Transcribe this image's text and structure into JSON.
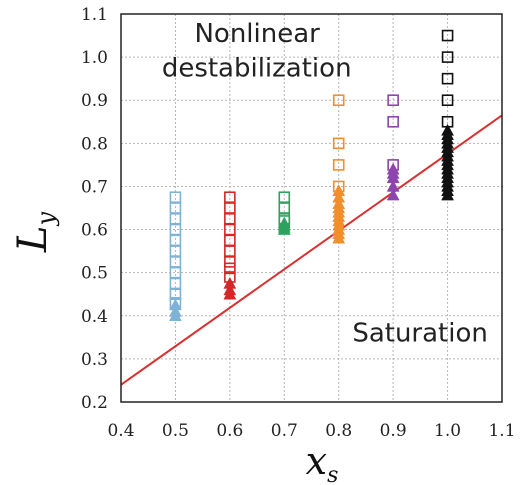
{
  "chart_data": {
    "type": "scatter",
    "xlabel": "x",
    "xlabel_sub": "s",
    "ylabel": "L",
    "ylabel_sub": "y",
    "xlim": [
      0.4,
      1.1
    ],
    "ylim": [
      0.2,
      1.1
    ],
    "x_ticks": [
      "0.4",
      "0.5",
      "0.6",
      "0.7",
      "0.8",
      "0.9",
      "1.0",
      "1.1"
    ],
    "y_ticks": [
      "0.2",
      "0.3",
      "0.4",
      "0.5",
      "0.6",
      "0.7",
      "0.8",
      "0.9",
      "1.0",
      "1.1"
    ],
    "grid": true,
    "annotations": [
      {
        "name": "nonlinear-label-line1",
        "text": "Nonlinear",
        "x": 0.535,
        "y": 1.035
      },
      {
        "name": "nonlinear-label-line2",
        "text": "destabilization",
        "x": 0.475,
        "y": 0.955
      },
      {
        "name": "saturation-label",
        "text": "Saturation",
        "x": 0.825,
        "y": 0.34
      }
    ],
    "fit_line": {
      "color": "#d93030",
      "x": [
        0.4,
        1.1
      ],
      "y": [
        0.24,
        0.865
      ]
    },
    "series": [
      {
        "x": 0.5,
        "color": "#7fb3d5",
        "open": [
          0.675,
          0.65,
          0.625,
          0.6,
          0.575,
          0.55,
          0.525,
          0.5,
          0.475,
          0.45,
          0.43
        ],
        "filled": [
          0.425,
          0.41,
          0.4
        ]
      },
      {
        "x": 0.6,
        "color": "#d62728",
        "open": [
          0.675,
          0.65,
          0.625,
          0.6,
          0.575,
          0.55,
          0.525,
          0.51,
          0.49
        ],
        "filled": [
          0.475,
          0.46,
          0.45
        ]
      },
      {
        "x": 0.7,
        "color": "#2ca25f",
        "open": [
          0.675,
          0.65,
          0.625,
          0.62
        ],
        "filled": [
          0.615,
          0.61,
          0.605,
          0.6
        ]
      },
      {
        "x": 0.8,
        "color": "#f28e2b",
        "open": [
          0.9,
          0.8,
          0.75,
          0.7
        ],
        "filled": [
          0.69,
          0.675,
          0.66,
          0.65,
          0.64,
          0.63,
          0.62,
          0.61,
          0.6,
          0.59,
          0.58
        ]
      },
      {
        "x": 0.9,
        "color": "#8e44ad",
        "open": [
          0.9,
          0.85,
          0.75
        ],
        "filled": [
          0.74,
          0.73,
          0.72,
          0.7,
          0.68
        ]
      },
      {
        "x": 1.0,
        "color": "#111111",
        "open": [
          1.05,
          1.0,
          0.95,
          0.9,
          0.85
        ],
        "filled": [
          0.83,
          0.82,
          0.81,
          0.8,
          0.79,
          0.78,
          0.77,
          0.76,
          0.75,
          0.74,
          0.73,
          0.72,
          0.71,
          0.7,
          0.69,
          0.68
        ]
      }
    ]
  }
}
